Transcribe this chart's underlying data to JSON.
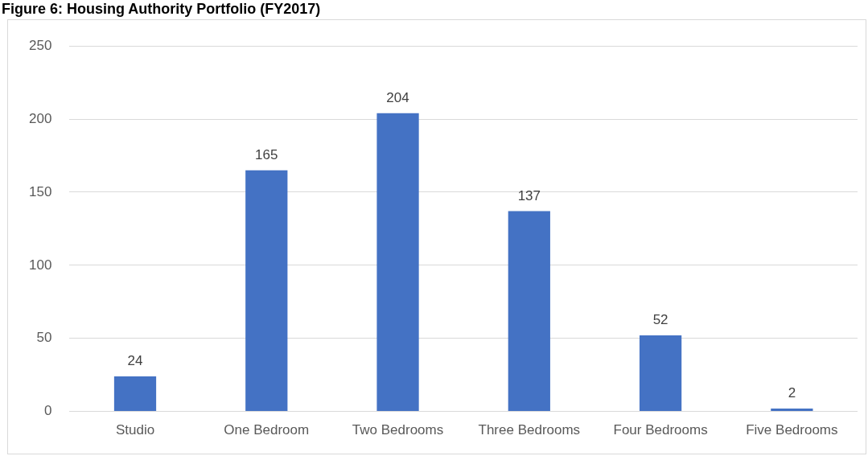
{
  "chart_data": {
    "type": "bar",
    "title": "Figure 6: Housing Authority Portfolio (FY2017)",
    "categories": [
      "Studio",
      "One Bedroom",
      "Two Bedrooms",
      "Three Bedrooms",
      "Four Bedrooms",
      "Five Bedrooms"
    ],
    "values": [
      24,
      165,
      204,
      137,
      52,
      2
    ],
    "color": "#4472c4",
    "ylim": [
      0,
      250
    ],
    "yticks": [
      0,
      50,
      100,
      150,
      200,
      250
    ],
    "grid": "y",
    "data_labels": true
  }
}
